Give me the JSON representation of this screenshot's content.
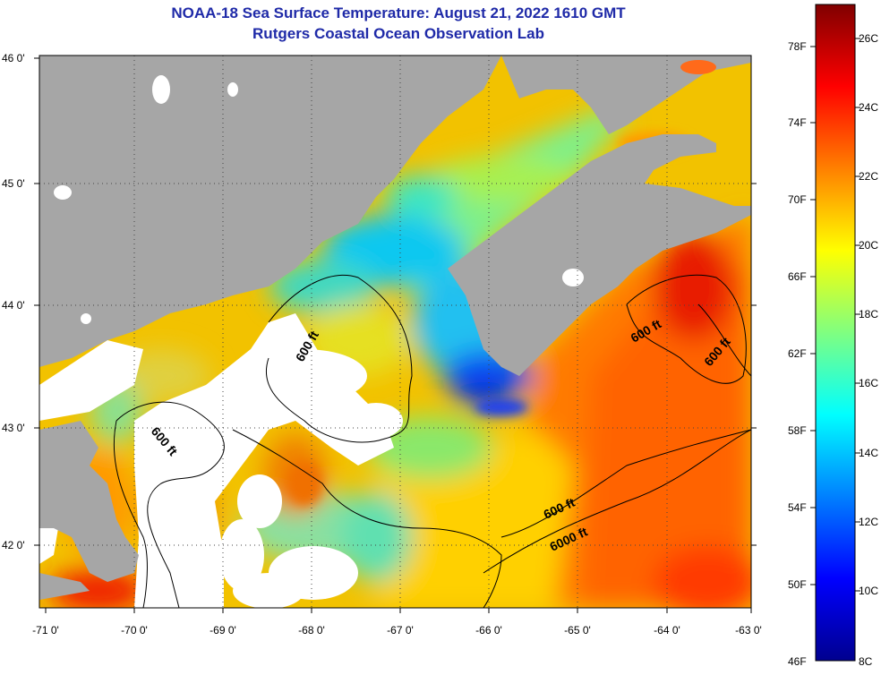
{
  "title": {
    "line1": "NOAA-18 Sea Surface Temperature:  August 21, 2022 1610 GMT",
    "line2": "Rutgers Coastal Ocean Observation Lab"
  },
  "axes": {
    "lat_labels": [
      "46 0'",
      "45 0'",
      "44 0'",
      "43 0'",
      "42 0'"
    ],
    "lon_labels": [
      "-71 0'",
      "-70 0'",
      "-69 0'",
      "-68 0'",
      "-67 0'",
      "-66 0'",
      "-65 0'",
      "-64 0'",
      "-63 0'"
    ]
  },
  "contours": {
    "labels": [
      "600 ft",
      "600 ft",
      "600 ft",
      "600 ft",
      "600 ft",
      "6000 ft"
    ]
  },
  "colorbar": {
    "f_labels": [
      "78F",
      "74F",
      "70F",
      "66F",
      "62F",
      "58F",
      "54F",
      "50F",
      "46F"
    ],
    "c_labels": [
      "26C",
      "24C",
      "22C",
      "20C",
      "18C",
      "16C",
      "14C",
      "12C",
      "10C",
      "8C"
    ],
    "colors": [
      "#00008f",
      "#0000ff",
      "#0080ff",
      "#00ffff",
      "#80ff80",
      "#ffff00",
      "#ff8000",
      "#ff0000",
      "#800000"
    ]
  },
  "palette": {
    "land": "#a6a6a6",
    "cloud": "#ffffff",
    "title": "#1f2aa8"
  }
}
